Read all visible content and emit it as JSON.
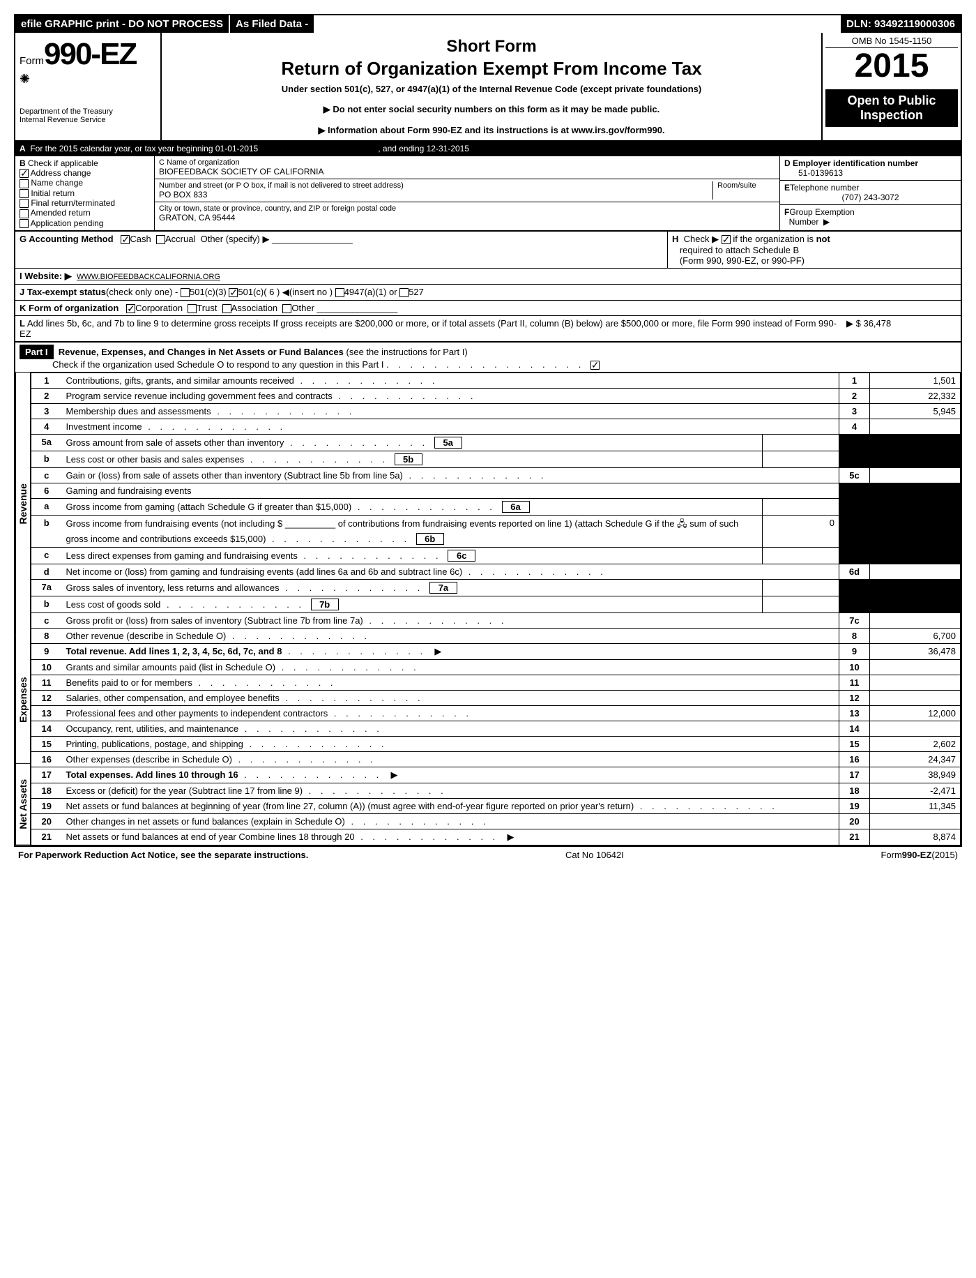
{
  "topbar": {
    "efile": "efile GRAPHIC print - DO NOT PROCESS",
    "asfiled": "As Filed Data -",
    "dln": "DLN: 93492119000306"
  },
  "header": {
    "form_prefix": "Form",
    "form_num": "990-EZ",
    "dept1": "Department of the Treasury",
    "dept2": "Internal Revenue Service",
    "title1": "Short Form",
    "title2": "Return of Organization Exempt From Income Tax",
    "subtitle": "Under section 501(c), 527, or 4947(a)(1) of the Internal Revenue Code (except private foundations)",
    "notice1": "▶ Do not enter social security numbers on this form as it may be made public.",
    "notice2": "▶ Information about Form 990-EZ and its instructions is at ",
    "notice2_link": "www.irs.gov/form990",
    "omb": "OMB No 1545-1150",
    "year": "2015",
    "open1": "Open to Public",
    "open2": "Inspection"
  },
  "sectionA": {
    "label": "A",
    "text": "For the 2015 calendar year, or tax year beginning 01-01-2015",
    "ending": ", and ending 12-31-2015"
  },
  "sectionB": {
    "label": "B",
    "heading": "Check if applicable",
    "items": [
      "Address change",
      "Name change",
      "Initial return",
      "Final return/terminated",
      "Amended return",
      "Application pending"
    ]
  },
  "sectionC": {
    "label": "C Name of organization",
    "name": "BIOFEEDBACK SOCIETY OF CALIFORNIA",
    "street_label": "Number and street (or P O box, if mail is not delivered to street address)",
    "room_label": "Room/suite",
    "street": "PO BOX 833",
    "city_label": "City or town, state or province, country, and ZIP or foreign postal code",
    "city": "GRATON, CA 95444"
  },
  "sectionD": {
    "label": "D Employer identification number",
    "value": "51-0139613"
  },
  "sectionE": {
    "label": "E",
    "text": "Telephone number",
    "value": "(707) 243-3072"
  },
  "sectionF": {
    "label": "F",
    "text": "Group Exemption",
    "text2": "Number",
    "arrow": "▶"
  },
  "sectionG": {
    "label": "G Accounting Method",
    "cash": "Cash",
    "accrual": "Accrual",
    "other": "Other (specify) ▶"
  },
  "sectionH": {
    "label": "H",
    "text1": "Check ▶",
    "text2": "if the organization is",
    "not": "not",
    "text3": "required to attach Schedule B",
    "text4": "(Form 990, 990-EZ, or 990-PF)"
  },
  "sectionI": {
    "label": "I Website: ▶",
    "value": "WWW.BIOFEEDBACKCALIFORNIA.ORG"
  },
  "sectionJ": {
    "label": "J Tax-exempt status",
    "text": "(check only one) -",
    "opts": [
      "501(c)(3)",
      "501(c)( 6 ) ◀(insert no )",
      "4947(a)(1) or",
      "527"
    ]
  },
  "sectionK": {
    "label": "K Form of organization",
    "opts": [
      "Corporation",
      "Trust",
      "Association",
      "Other"
    ]
  },
  "sectionL": {
    "label": "L",
    "text": "Add lines 5b, 6c, and 7b to line 9 to determine gross receipts If gross receipts are $200,000 or more, or if total assets (Part II, column (B) below) are $500,000 or more, file Form 990 instead of Form 990-EZ",
    "arrow": "▶",
    "amount": "$ 36,478"
  },
  "part1": {
    "label": "Part I",
    "title": "Revenue, Expenses, and Changes in Net Assets or Fund Balances",
    "instr": "(see the instructions for Part I)",
    "check_text": "Check if the organization used Schedule O to respond to any question in this Part I"
  },
  "sideLabels": {
    "rev": "Revenue",
    "exp": "Expenses",
    "net": "Net Assets"
  },
  "lines": [
    {
      "n": "1",
      "d": "Contributions, gifts, grants, and similar amounts received",
      "r": "1",
      "a": "1,501"
    },
    {
      "n": "2",
      "d": "Program service revenue including government fees and contracts",
      "r": "2",
      "a": "22,332"
    },
    {
      "n": "3",
      "d": "Membership dues and assessments",
      "r": "3",
      "a": "5,945"
    },
    {
      "n": "4",
      "d": "Investment income",
      "r": "4",
      "a": ""
    },
    {
      "n": "5a",
      "d": "Gross amount from sale of assets other than inventory",
      "ir": "5a",
      "ia": "",
      "shaded": true
    },
    {
      "n": "b",
      "d": "Less cost or other basis and sales expenses",
      "ir": "5b",
      "ia": "",
      "shaded": true
    },
    {
      "n": "c",
      "d": "Gain or (loss) from sale of assets other than inventory (Subtract line 5b from line 5a)",
      "r": "5c",
      "a": ""
    },
    {
      "n": "6",
      "d": "Gaming and fundraising events",
      "shaded": true,
      "nobox": true
    },
    {
      "n": "a",
      "d": "Gross income from gaming (attach Schedule G if greater than $15,000)",
      "ir": "6a",
      "ia": "",
      "shaded": true
    },
    {
      "n": "b",
      "d": "Gross income from fundraising events (not including $ __________ of contributions from fundraising events reported on line 1) (attach Schedule G if the 🖧 sum of such gross income and contributions exceeds $15,000)",
      "ir": "6b",
      "ia": "0",
      "shaded": true
    },
    {
      "n": "c",
      "d": "Less direct expenses from gaming and fundraising events",
      "ir": "6c",
      "ia": "",
      "shaded": true
    },
    {
      "n": "d",
      "d": "Net income or (loss) from gaming and fundraising events (add lines 6a and 6b and subtract line 6c)",
      "r": "6d",
      "a": ""
    },
    {
      "n": "7a",
      "d": "Gross sales of inventory, less returns and allowances",
      "ir": "7a",
      "ia": "",
      "shaded": true
    },
    {
      "n": "b",
      "d": "Less cost of goods sold",
      "ir": "7b",
      "ia": "",
      "shaded": true
    },
    {
      "n": "c",
      "d": "Gross profit or (loss) from sales of inventory (Subtract line 7b from line 7a)",
      "r": "7c",
      "a": ""
    },
    {
      "n": "8",
      "d": "Other revenue (describe in Schedule O)",
      "r": "8",
      "a": "6,700"
    },
    {
      "n": "9",
      "d": "Total revenue. Add lines 1, 2, 3, 4, 5c, 6d, 7c, and 8",
      "r": "9",
      "a": "36,478",
      "arrow": true,
      "bold": true
    }
  ],
  "expLines": [
    {
      "n": "10",
      "d": "Grants and similar amounts paid (list in Schedule O)",
      "r": "10",
      "a": ""
    },
    {
      "n": "11",
      "d": "Benefits paid to or for members",
      "r": "11",
      "a": ""
    },
    {
      "n": "12",
      "d": "Salaries, other compensation, and employee benefits",
      "r": "12",
      "a": ""
    },
    {
      "n": "13",
      "d": "Professional fees and other payments to independent contractors",
      "r": "13",
      "a": "12,000"
    },
    {
      "n": "14",
      "d": "Occupancy, rent, utilities, and maintenance",
      "r": "14",
      "a": ""
    },
    {
      "n": "15",
      "d": "Printing, publications, postage, and shipping",
      "r": "15",
      "a": "2,602"
    },
    {
      "n": "16",
      "d": "Other expenses (describe in Schedule O)",
      "r": "16",
      "a": "24,347"
    },
    {
      "n": "17",
      "d": "Total expenses. Add lines 10 through 16",
      "r": "17",
      "a": "38,949",
      "arrow": true,
      "bold": true
    }
  ],
  "netLines": [
    {
      "n": "18",
      "d": "Excess or (deficit) for the year (Subtract line 17 from line 9)",
      "r": "18",
      "a": "-2,471"
    },
    {
      "n": "19",
      "d": "Net assets or fund balances at beginning of year (from line 27, column (A)) (must agree with end-of-year figure reported on prior year's return)",
      "r": "19",
      "a": "11,345"
    },
    {
      "n": "20",
      "d": "Other changes in net assets or fund balances (explain in Schedule O)",
      "r": "20",
      "a": ""
    },
    {
      "n": "21",
      "d": "Net assets or fund balances at end of year Combine lines 18 through 20",
      "r": "21",
      "a": "8,874",
      "arrow": true
    }
  ],
  "footer": {
    "left": "For Paperwork Reduction Act Notice, see the separate instructions.",
    "center": "Cat No 10642I",
    "right_prefix": "Form",
    "right_form": "990-EZ",
    "right_year": "(2015)"
  }
}
